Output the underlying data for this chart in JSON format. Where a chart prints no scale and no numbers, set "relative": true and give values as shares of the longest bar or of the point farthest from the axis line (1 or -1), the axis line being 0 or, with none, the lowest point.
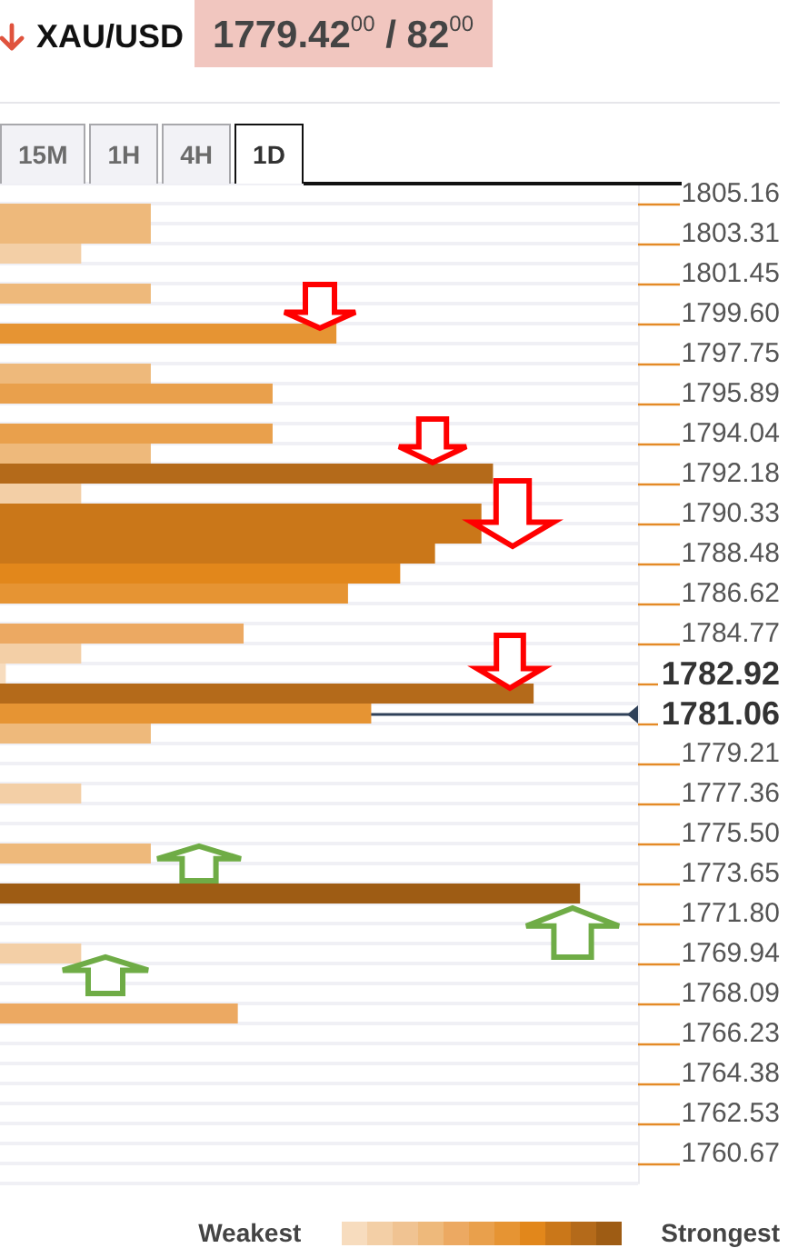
{
  "chart_data": {
    "type": "bar",
    "orientation": "horizontal",
    "relative": true,
    "title": "XAU/USD",
    "subtitle": "1779.42$^{00}$ / 82$^{00}$",
    "categories": [
      "1805.16",
      null,
      "1803.31",
      null,
      "1801.45",
      null,
      "1799.60",
      null,
      "1797.75",
      null,
      "1795.89",
      null,
      "1794.04",
      null,
      "1792.18",
      null,
      "1790.33",
      null,
      "1788.48",
      null,
      "1786.62",
      null,
      "1784.77",
      null,
      "1782.92",
      null,
      "1781.06",
      null,
      "1779.21",
      null,
      "1777.36",
      null,
      "1775.50",
      null,
      "1773.65",
      null,
      "1771.80",
      null,
      "1769.94",
      null,
      "1768.09",
      null,
      "1766.23",
      null,
      "1764.38",
      null,
      "1762.53",
      null,
      "1760.67",
      null
    ],
    "values": [
      null,
      0.26,
      0.26,
      0.14,
      null,
      0.26,
      null,
      0.58,
      null,
      0.26,
      0.47,
      null,
      0.47,
      0.26,
      0.85,
      0.14,
      0.83,
      0.83,
      0.75,
      0.69,
      0.6,
      null,
      0.42,
      0.14,
      0.01,
      0.92,
      0.64,
      0.26,
      null,
      null,
      0.14,
      null,
      null,
      0.26,
      null,
      1,
      null,
      null,
      0.14,
      null,
      null,
      0.41,
      null,
      null,
      null,
      null,
      null,
      null,
      null,
      null
    ],
    "colors": [
      null,
      "#eeb97b",
      "#eeb97b",
      "#f3cfa6",
      null,
      "#eeb97b",
      null,
      "#e69433",
      null,
      "#eeb97b",
      "#e9a04c",
      null,
      "#e9a04c",
      "#eeb97b",
      "#b46a1a",
      "#f3cfa6",
      "#ca7719",
      "#ca7719",
      "#ca7719",
      "#e2871b",
      "#e69433",
      null,
      "#eca962",
      "#f3cfa6",
      "#f7dcbe",
      "#b46a1a",
      "#e69433",
      "#eeb97b",
      null,
      null,
      "#f3cfa6",
      null,
      null,
      "#eeb97b",
      null,
      "#9e5c14",
      null,
      null,
      "#f3cfa6",
      null,
      null,
      "#eca962",
      null,
      null,
      null,
      null,
      null,
      null,
      null,
      null
    ],
    "grid": "y",
    "ref_lines": [
      {
        "axis": "y",
        "value": "1781.06",
        "color": "#2f4159"
      }
    ],
    "annotations": [
      "15M",
      "1H",
      "4H",
      "1D",
      "Weakest",
      "Strongest"
    ]
  }
}
